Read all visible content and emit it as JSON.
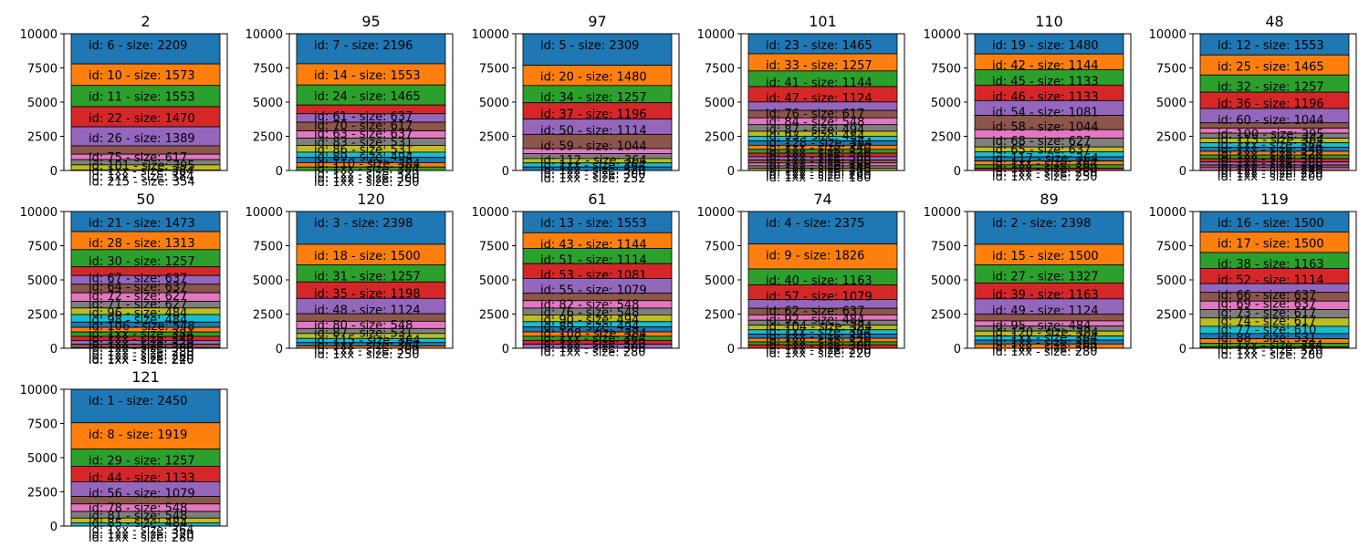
{
  "palette": [
    "#1f77b4",
    "#ff7f0e",
    "#2ca02c",
    "#d62728",
    "#9467bd",
    "#8c564b",
    "#e377c2",
    "#7f7f7f",
    "#bcbd22",
    "#17becf"
  ],
  "chart_data": [
    {
      "type": "bar",
      "stacked": true,
      "title": "2",
      "ylim": [
        0,
        10000
      ],
      "yticks": [
        0,
        2500,
        5000,
        7500,
        10000
      ],
      "segments": [
        {
          "label": "id: 6 - size: 2209",
          "value": 2209
        },
        {
          "label": "id: 10 - size: 1573",
          "value": 1573
        },
        {
          "label": "id: 11 - size: 1553",
          "value": 1553
        },
        {
          "label": "id: 22 - size: 1470",
          "value": 1470
        },
        {
          "label": "id: 26 - size: 1389",
          "value": 1389
        },
        {
          "label": "id: 75 - size: 617",
          "value": 617
        },
        {
          "label": "id: 101 - size: 395",
          "value": 395
        },
        {
          "label": "id: 1xx - size: 384",
          "value": 384
        },
        {
          "label": "id: 1xx - size: 384",
          "value": 384
        },
        {
          "label": "id: 215 - size: 354",
          "value": 354
        },
        {
          "label": "",
          "value": 300
        }
      ]
    },
    {
      "type": "bar",
      "stacked": true,
      "title": "95",
      "ylim": [
        0,
        10000
      ],
      "yticks": [
        0,
        2500,
        5000,
        7500,
        10000
      ],
      "segments": [
        {
          "label": "id: 7 - size: 2196",
          "value": 2196
        },
        {
          "label": "id: 14 - size: 1553",
          "value": 1553
        },
        {
          "label": "id: 24 - size: 1465",
          "value": 1465
        },
        {
          "label": "id: 61 - size: 637",
          "value": 637
        },
        {
          "label": "id: 70 - size: 617",
          "value": 617
        },
        {
          "label": "id: 63 - size: 637",
          "value": 637
        },
        {
          "label": "id: 83 - size: 531",
          "value": 531
        },
        {
          "label": "id: 86 - size: 531",
          "value": 531
        },
        {
          "label": "id: 89 - size: 494",
          "value": 494
        },
        {
          "label": "id: 110 - size: 384",
          "value": 384
        },
        {
          "label": "id: 1xx - size: 384",
          "value": 384
        },
        {
          "label": "id: 1xx - size: 320",
          "value": 320
        },
        {
          "label": "id: 1xx - size: 300",
          "value": 300
        },
        {
          "label": "id: 1xx - size: 250",
          "value": 250
        },
        {
          "label": "",
          "value": 101
        }
      ]
    },
    {
      "type": "bar",
      "stacked": true,
      "title": "97",
      "ylim": [
        0,
        10000
      ],
      "yticks": [
        0,
        2500,
        5000,
        7500,
        10000
      ],
      "segments": [
        {
          "label": "id: 5 - size: 2309",
          "value": 2309
        },
        {
          "label": "id: 20 - size: 1480",
          "value": 1480
        },
        {
          "label": "id: 34 - size: 1257",
          "value": 1257
        },
        {
          "label": "id: 37 - size: 1196",
          "value": 1196
        },
        {
          "label": "id: 50 - size: 1114",
          "value": 1114
        },
        {
          "label": "id: 59 - size: 1044",
          "value": 1044
        },
        {
          "label": "id: 112 - size: 364",
          "value": 364
        },
        {
          "label": "id: 1xx - size: 364",
          "value": 364
        },
        {
          "label": "id: 1xx - size: 320",
          "value": 320
        },
        {
          "label": "id: 1xx - size: 300",
          "value": 300
        },
        {
          "label": "id: 1xx - size: 252",
          "value": 252
        }
      ]
    },
    {
      "type": "bar",
      "stacked": true,
      "title": "101",
      "ylim": [
        0,
        10000
      ],
      "yticks": [
        0,
        2500,
        5000,
        7500,
        10000
      ],
      "segments": [
        {
          "label": "id: 23 - size: 1465",
          "value": 1465
        },
        {
          "label": "id: 33 - size: 1257",
          "value": 1257
        },
        {
          "label": "id: 41 - size: 1144",
          "value": 1144
        },
        {
          "label": "id: 47 - size: 1124",
          "value": 1124
        },
        {
          "label": "id: 76 - size: 617",
          "value": 617
        },
        {
          "label": "id: 84 - size: 548",
          "value": 548
        },
        {
          "label": "id: 87 - size: 494",
          "value": 494
        },
        {
          "label": "id: 93 - size: 484",
          "value": 484
        },
        {
          "label": "id: 128 - size: 364",
          "value": 364
        },
        {
          "label": "id: 1xx - size: 340",
          "value": 340
        },
        {
          "label": "id: 1xx - size: 320",
          "value": 320
        },
        {
          "label": "id: 1xx - size: 300",
          "value": 300
        },
        {
          "label": "id: 1xx - size: 280",
          "value": 280
        },
        {
          "label": "id: 1xx - size: 260",
          "value": 260
        },
        {
          "label": "id: 1xx - size: 240",
          "value": 240
        },
        {
          "label": "id: 1xx - size: 220",
          "value": 220
        },
        {
          "label": "id: 1xx - size: 200",
          "value": 200
        },
        {
          "label": "id: 1xx - size: 180",
          "value": 180
        },
        {
          "label": "",
          "value": 145
        }
      ]
    },
    {
      "type": "bar",
      "stacked": true,
      "title": "110",
      "ylim": [
        0,
        10000
      ],
      "yticks": [
        0,
        2500,
        5000,
        7500,
        10000
      ],
      "segments": [
        {
          "label": "id: 19 - size: 1480",
          "value": 1480
        },
        {
          "label": "id: 42 - size: 1144",
          "value": 1144
        },
        {
          "label": "id: 45 - size: 1133",
          "value": 1133
        },
        {
          "label": "id: 46 - size: 1133",
          "value": 1133
        },
        {
          "label": "id: 54 - size: 1081",
          "value": 1081
        },
        {
          "label": "id: 58 - size: 1044",
          "value": 1044
        },
        {
          "label": "id: 68 - size: 627",
          "value": 627
        },
        {
          "label": "id: 65 - size: 637",
          "value": 637
        },
        {
          "label": "id: 117 - size: 364",
          "value": 364
        },
        {
          "label": "id: 1xx - size: 364",
          "value": 364
        },
        {
          "label": "id: 1xx - size: 300",
          "value": 300
        },
        {
          "label": "id: 1xx - size: 280",
          "value": 280
        },
        {
          "label": "id: 1xx - size: 250",
          "value": 250
        },
        {
          "label": "",
          "value": 163
        }
      ]
    },
    {
      "type": "bar",
      "stacked": true,
      "title": "48",
      "ylim": [
        0,
        10000
      ],
      "yticks": [
        0,
        2500,
        5000,
        7500,
        10000
      ],
      "segments": [
        {
          "label": "id: 12 - size: 1553",
          "value": 1553
        },
        {
          "label": "id: 25 - size: 1465",
          "value": 1465
        },
        {
          "label": "id: 32 - size: 1257",
          "value": 1257
        },
        {
          "label": "id: 36 - size: 1196",
          "value": 1196
        },
        {
          "label": "id: 60 - size: 1044",
          "value": 1044
        },
        {
          "label": "id: 100 - size: 395",
          "value": 395
        },
        {
          "label": "id: 113 - size: 364",
          "value": 364
        },
        {
          "label": "id: 1xx - size: 364",
          "value": 364
        },
        {
          "label": "id: 1xx - size: 340",
          "value": 340
        },
        {
          "label": "id: 1xx - size: 320",
          "value": 320
        },
        {
          "label": "id: 1xx - size: 300",
          "value": 300
        },
        {
          "label": "id: 1xx - size: 280",
          "value": 280
        },
        {
          "label": "id: 1xx - size: 260",
          "value": 260
        },
        {
          "label": "id: 1xx - size: 240",
          "value": 240
        },
        {
          "label": "id: 1xx - size: 220",
          "value": 220
        },
        {
          "label": "id: 1xx - size: 200",
          "value": 200
        },
        {
          "label": "",
          "value": 176
        }
      ]
    },
    {
      "type": "bar",
      "stacked": true,
      "title": "50",
      "ylim": [
        0,
        10000
      ],
      "yticks": [
        0,
        2500,
        5000,
        7500,
        10000
      ],
      "segments": [
        {
          "label": "id: 21 - size: 1473",
          "value": 1473
        },
        {
          "label": "id: 28 - size: 1313",
          "value": 1313
        },
        {
          "label": "id: 30 - size: 1257",
          "value": 1257
        },
        {
          "label": "id: 67 - size: 637",
          "value": 637
        },
        {
          "label": "id: 64 - size: 637",
          "value": 637
        },
        {
          "label": "id: 72 - size: 627",
          "value": 627
        },
        {
          "label": "id: 71 - size: 627",
          "value": 627
        },
        {
          "label": "id: 96 - size: 484",
          "value": 484
        },
        {
          "label": "id: 98 - size: 484",
          "value": 484
        },
        {
          "label": "id: 106 - size: 548",
          "value": 548
        },
        {
          "label": "id: 1xx - size: 384",
          "value": 384
        },
        {
          "label": "id: 1xx - size: 340",
          "value": 340
        },
        {
          "label": "id: 1xx - size: 320",
          "value": 320
        },
        {
          "label": "id: 1xx - size: 300",
          "value": 300
        },
        {
          "label": "id: 1xx - size: 280",
          "value": 280
        },
        {
          "label": "id: 1xx - size: 260",
          "value": 260
        },
        {
          "label": "id: 1xx - size: 240",
          "value": 240
        },
        {
          "label": "id: 1xx - size: 220",
          "value": 220
        },
        {
          "label": "",
          "value": 128
        }
      ]
    },
    {
      "type": "bar",
      "stacked": true,
      "title": "120",
      "ylim": [
        0,
        10000
      ],
      "yticks": [
        0,
        2500,
        5000,
        7500,
        10000
      ],
      "segments": [
        {
          "label": "id: 3 - size: 2398",
          "value": 2398
        },
        {
          "label": "id: 18 - size: 1500",
          "value": 1500
        },
        {
          "label": "id: 31 - size: 1257",
          "value": 1257
        },
        {
          "label": "id: 35 - size: 1198",
          "value": 1198
        },
        {
          "label": "id: 48 - size: 1124",
          "value": 1124
        },
        {
          "label": "id: 80 - size: 548",
          "value": 548
        },
        {
          "label": "id: 87 - size: 531",
          "value": 531
        },
        {
          "label": "id: 115 - size: 364",
          "value": 364
        },
        {
          "label": "id: 1xx - size: 364",
          "value": 364
        },
        {
          "label": "id: 1xx - size: 300",
          "value": 300
        },
        {
          "label": "id: 1xx - size: 250",
          "value": 250
        },
        {
          "label": "",
          "value": 166
        }
      ]
    },
    {
      "type": "bar",
      "stacked": true,
      "title": "61",
      "ylim": [
        0,
        10000
      ],
      "yticks": [
        0,
        2500,
        5000,
        7500,
        10000
      ],
      "segments": [
        {
          "label": "id: 13 - size: 1553",
          "value": 1553
        },
        {
          "label": "id: 43 - size: 1144",
          "value": 1144
        },
        {
          "label": "id: 51 - size: 1114",
          "value": 1114
        },
        {
          "label": "id: 53 - size: 1081",
          "value": 1081
        },
        {
          "label": "id: 55 - size: 1079",
          "value": 1079
        },
        {
          "label": "id: 82 - size: 548",
          "value": 548
        },
        {
          "label": "id: 76 - size: 548",
          "value": 548
        },
        {
          "label": "id: 90 - size: 494",
          "value": 494
        },
        {
          "label": "id: 89 - size: 494",
          "value": 494
        },
        {
          "label": "id: 108 - size: 384",
          "value": 384
        },
        {
          "label": "id: 1xx - size: 364",
          "value": 364
        },
        {
          "label": "id: 1xx - size: 320",
          "value": 320
        },
        {
          "label": "id: 1xx - size: 300",
          "value": 300
        },
        {
          "label": "id: 1xx - size: 280",
          "value": 280
        },
        {
          "label": "",
          "value": 297
        }
      ]
    },
    {
      "type": "bar",
      "stacked": true,
      "title": "74",
      "ylim": [
        0,
        10000
      ],
      "yticks": [
        0,
        2500,
        5000,
        7500,
        10000
      ],
      "segments": [
        {
          "label": "id: 4 - size: 2375",
          "value": 2375
        },
        {
          "label": "id: 9 - size: 1826",
          "value": 1826
        },
        {
          "label": "id: 40 - size: 1163",
          "value": 1163
        },
        {
          "label": "id: 57 - size: 1079",
          "value": 1079
        },
        {
          "label": "id: 62 - size: 637",
          "value": 637
        },
        {
          "label": "id: 92 - size: 484",
          "value": 484
        },
        {
          "label": "id: 104 - size: 384",
          "value": 384
        },
        {
          "label": "id: 1xx - size: 364",
          "value": 364
        },
        {
          "label": "id: 1xx - size: 340",
          "value": 340
        },
        {
          "label": "id: 1xx - size: 320",
          "value": 320
        },
        {
          "label": "id: 1xx - size: 300",
          "value": 300
        },
        {
          "label": "id: 1xx - size: 260",
          "value": 260
        },
        {
          "label": "id: 1xx - size: 220",
          "value": 220
        },
        {
          "label": "",
          "value": 248
        }
      ]
    },
    {
      "type": "bar",
      "stacked": true,
      "title": "89",
      "ylim": [
        0,
        10000
      ],
      "yticks": [
        0,
        2500,
        5000,
        7500,
        10000
      ],
      "segments": [
        {
          "label": "id: 2 - size: 2398",
          "value": 2398
        },
        {
          "label": "id: 15 - size: 1500",
          "value": 1500
        },
        {
          "label": "id: 27 - size: 1327",
          "value": 1327
        },
        {
          "label": "id: 39 - size: 1163",
          "value": 1163
        },
        {
          "label": "id: 49 - size: 1124",
          "value": 1124
        },
        {
          "label": "id: 95 - size: 484",
          "value": 484
        },
        {
          "label": "id: 120 - size: 384",
          "value": 384
        },
        {
          "label": "id: 1xx - size: 364",
          "value": 364
        },
        {
          "label": "id: 1xx - size: 364",
          "value": 364
        },
        {
          "label": "id: 1xx - size: 300",
          "value": 300
        },
        {
          "label": "id: 1xx - size: 280",
          "value": 280
        },
        {
          "label": "",
          "value": 312
        }
      ]
    },
    {
      "type": "bar",
      "stacked": true,
      "title": "119",
      "ylim": [
        0,
        10000
      ],
      "yticks": [
        0,
        2500,
        5000,
        7500,
        10000
      ],
      "segments": [
        {
          "label": "id: 16 - size: 1500",
          "value": 1500
        },
        {
          "label": "id: 17 - size: 1500",
          "value": 1500
        },
        {
          "label": "id: 38 - size: 1163",
          "value": 1163
        },
        {
          "label": "id: 52 - size: 1114",
          "value": 1114
        },
        {
          "label": "id: 66 - size: 637",
          "value": 637
        },
        {
          "label": "id: 69 - size: 637",
          "value": 637
        },
        {
          "label": "id: 73 - size: 617",
          "value": 617
        },
        {
          "label": "id: 74 - size: 617",
          "value": 617
        },
        {
          "label": "id: 77 - size: 610",
          "value": 610
        },
        {
          "label": "id: 88 - size: 531",
          "value": 531
        },
        {
          "label": "id: 1xx - size: 384",
          "value": 384
        },
        {
          "label": "id: 1xx - size: 320",
          "value": 320
        },
        {
          "label": "id: 1xx - size: 280",
          "value": 280
        },
        {
          "label": "",
          "value": 90
        }
      ]
    },
    {
      "type": "bar",
      "stacked": true,
      "title": "121",
      "ylim": [
        0,
        10000
      ],
      "yticks": [
        0,
        2500,
        5000,
        7500,
        10000
      ],
      "segments": [
        {
          "label": "id: 1 - size: 2450",
          "value": 2450
        },
        {
          "label": "id: 8 - size: 1919",
          "value": 1919
        },
        {
          "label": "id: 29 - size: 1257",
          "value": 1257
        },
        {
          "label": "id: 44 - size: 1133",
          "value": 1133
        },
        {
          "label": "id: 56 - size: 1079",
          "value": 1079
        },
        {
          "label": "id: 78 - size: 548",
          "value": 548
        },
        {
          "label": "id: 81 - size: 548",
          "value": 548
        },
        {
          "label": "id: 85 - size: 484",
          "value": 484
        },
        {
          "label": "id: 1xx - size: 364",
          "value": 364
        },
        {
          "label": "id: 1xx - size: 320",
          "value": 320
        },
        {
          "label": "id: 1xx - size: 280",
          "value": 280
        },
        {
          "label": "",
          "value": 218
        }
      ]
    }
  ]
}
